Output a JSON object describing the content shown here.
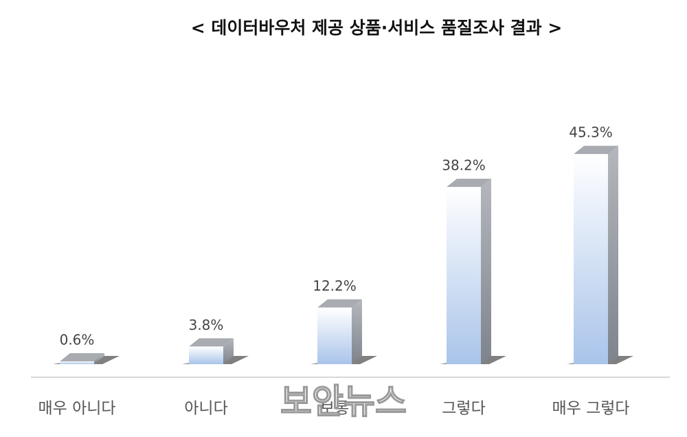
{
  "chart_data": {
    "type": "bar3d",
    "title": "< 데이터바우처 제공 상품·서비스 품질조사 결과 >",
    "categories": [
      "매우 아니다",
      "아니다",
      "보통",
      "그렇다",
      "매우 그렇다"
    ],
    "values": [
      0.6,
      3.8,
      12.2,
      38.2,
      45.3
    ],
    "value_labels": [
      "0.6%",
      "3.8%",
      "12.2%",
      "38.2%",
      "45.3%"
    ],
    "color": "#a9c4ea"
  },
  "watermark": "보안뉴스"
}
